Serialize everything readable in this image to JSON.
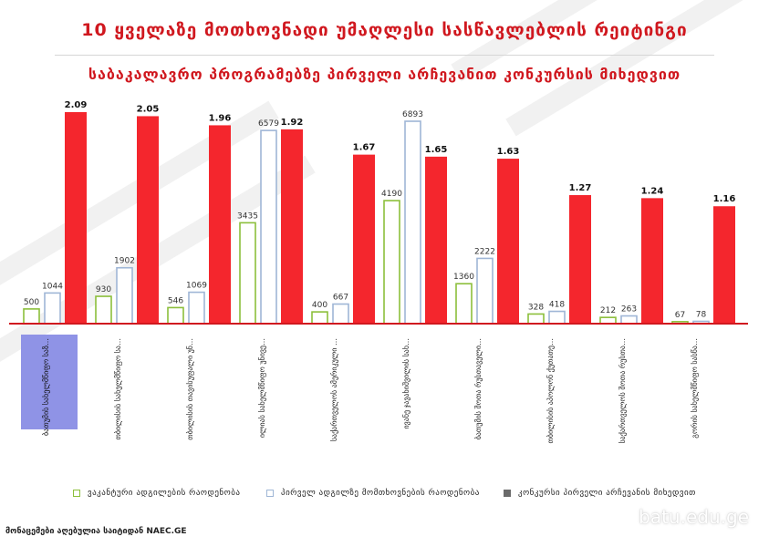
{
  "header": {
    "title": "10 ყველაზე მოთხოვნადი უმაღლესი სასწავლებლის რეიტინგი",
    "subtitle": "საბაკალავრო პროგრამებზე პირველი არჩევანით კონკურსის მიხედვით"
  },
  "chart_data": {
    "type": "bar",
    "categories": [
      "ბათუმის სახელმწიფო საზღვაო აკადემია",
      "თბილისის სახელმწიფო სამედიცინო უნივერსიტეტი",
      "თბილისის თავისუფალი უნივერსიტეტი",
      "ილიას სახელმწიფო უნივერსიტეტი",
      "საქართველოს ამერიკული უნივერსიტეტი",
      "ივანე ჯავახიშვილის სახელობის თბილისის სახელმწიფო უნივერსიტეტი",
      "ბათუმის შოთა რუსთაველის სახელმწიფო უნივერსიტეტი",
      "თბილისის აპოლონ ქუთათელაძის სახელობის სახელმწიფო სამხატვრო აკადემია",
      "საქართველოს შოთა რუსთაველის თეატრისა და კინოს სახელმწიფო უნივერსიტეტი",
      "გორის სახელმწიფო სასწავლო უნივერსიტეტი"
    ],
    "series": [
      {
        "name": "ვაკანტური ადგილების რაოდენობა",
        "values": [
          500,
          930,
          546,
          3435,
          400,
          4190,
          1360,
          328,
          212,
          67
        ]
      },
      {
        "name": "პირველ ადგილზე მომთხოვნების რაოდენობა",
        "values": [
          1044,
          1902,
          1069,
          6579,
          667,
          6893,
          2222,
          418,
          263,
          78
        ]
      },
      {
        "name": "კონკურსი პირველი არჩევანის მიხედვით",
        "values": [
          2.09,
          2.05,
          1.96,
          1.92,
          1.67,
          1.65,
          1.63,
          1.27,
          1.24,
          1.16
        ]
      }
    ],
    "colors": {
      "vacant": "#8cbf3b",
      "applicants": "#9fb6d6",
      "competition": "#f4262d",
      "highlight": "#8f93e6",
      "baseline": "#d0181f"
    }
  },
  "footer": {
    "source": "მონაცემები აღებულია საიტიდან NAEC.GE",
    "site": "batu.edu.ge"
  }
}
